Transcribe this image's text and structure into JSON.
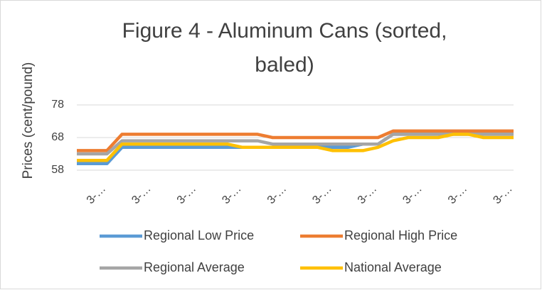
{
  "chart_data": {
    "type": "line",
    "title": "Figure 4 - Aluminum Cans (sorted, baled)",
    "y_label": "Prices (cent/pound)",
    "categories": [
      null,
      null,
      "3-…",
      null,
      null,
      "3-…",
      null,
      null,
      "3-…",
      null,
      null,
      "3-…",
      null,
      null,
      "3-…",
      null,
      null,
      "3-…",
      null,
      null,
      "3-…",
      null,
      null,
      "3-…",
      null,
      null,
      "3-…",
      null,
      null,
      "3-…"
    ],
    "series": [
      {
        "name": "Regional Low Price",
        "color": "#5b9bd5",
        "values": [
          60,
          60,
          60,
          65,
          65,
          65,
          65,
          65,
          65,
          65,
          65,
          65,
          65,
          65,
          65,
          65,
          65,
          65,
          65,
          66,
          66,
          69,
          69,
          69,
          69,
          69,
          69,
          69,
          69,
          69
        ]
      },
      {
        "name": "Regional High Price",
        "color": "#ed7d31",
        "values": [
          64,
          64,
          64,
          69,
          69,
          69,
          69,
          69,
          69,
          69,
          69,
          69,
          69,
          68,
          68,
          68,
          68,
          68,
          68,
          68,
          68,
          70,
          70,
          70,
          70,
          70,
          70,
          70,
          70,
          70
        ]
      },
      {
        "name": "Regional Average",
        "color": "#a5a5a5",
        "values": [
          63,
          63,
          63,
          67,
          67,
          67,
          67,
          67,
          67,
          67,
          67,
          67,
          67,
          66,
          66,
          66,
          66,
          66,
          66,
          66,
          66,
          69,
          69,
          69,
          69,
          69,
          69,
          69,
          69,
          69
        ]
      },
      {
        "name": "National Average",
        "color": "#ffc000",
        "values": [
          61,
          61,
          61,
          66,
          66,
          66,
          66,
          66,
          66,
          66,
          66,
          65,
          65,
          65,
          65,
          65,
          65,
          64,
          64,
          64,
          65,
          67,
          68,
          68,
          68,
          69,
          69,
          68,
          68,
          68
        ]
      }
    ],
    "ylim": [
      58,
      78
    ],
    "yticks": [
      58,
      68,
      78
    ],
    "grid": true,
    "legend": "bottom"
  }
}
